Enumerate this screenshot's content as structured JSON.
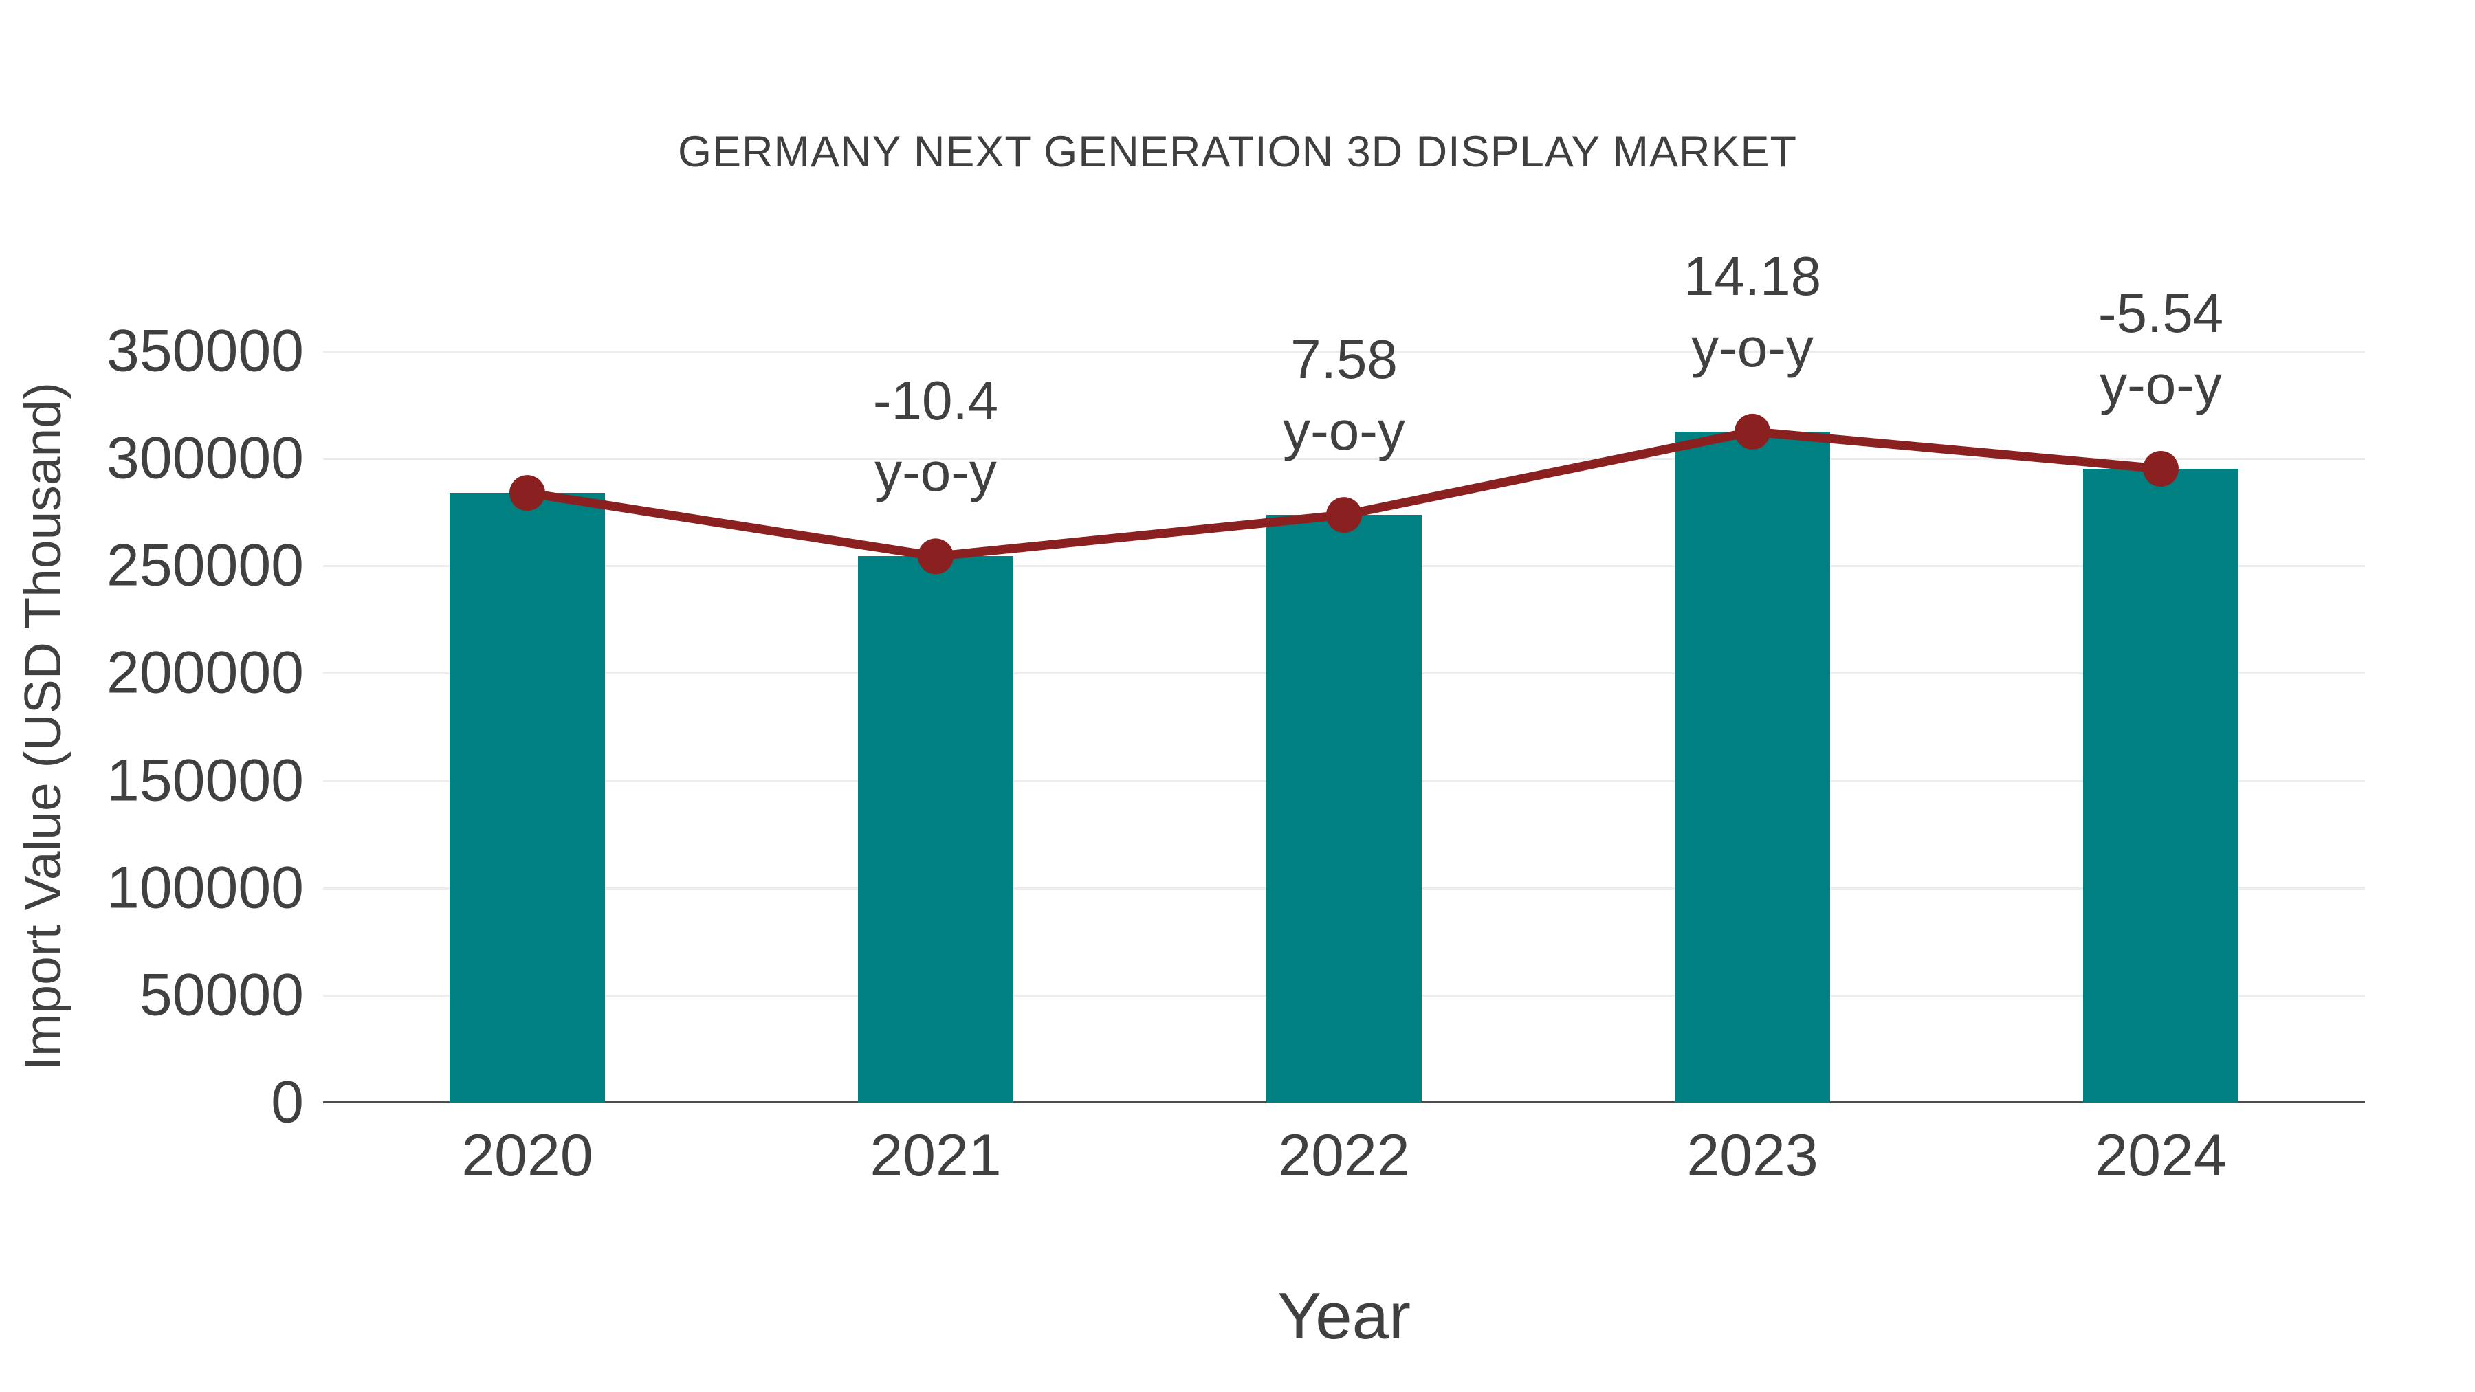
{
  "chart_data": {
    "type": "bar",
    "title": "GERMANY NEXT GENERATION 3D DISPLAY MARKET",
    "xlabel": "Year",
    "ylabel": "Import Value (USD Thousand)",
    "categories": [
      "2020",
      "2021",
      "2022",
      "2023",
      "2024"
    ],
    "series": [
      {
        "name": "Import Value (bars)",
        "type": "bar",
        "values": [
          284000,
          254460,
          273750,
          312570,
          295260
        ]
      },
      {
        "name": "Import Value (trend line)",
        "type": "line",
        "values": [
          284000,
          254460,
          273750,
          312570,
          295260
        ]
      }
    ],
    "annotations": [
      {
        "category": "2021",
        "value": "-10.4",
        "suffix": "y-o-y"
      },
      {
        "category": "2022",
        "value": "7.58",
        "suffix": "y-o-y"
      },
      {
        "category": "2023",
        "value": "14.18",
        "suffix": "y-o-y"
      },
      {
        "category": "2024",
        "value": "-5.54",
        "suffix": "y-o-y"
      }
    ],
    "ylim": [
      0,
      350000
    ],
    "ytick_step": 50000,
    "ytick_labels": [
      "0",
      "50000",
      "100000",
      "150000",
      "200000",
      "250000",
      "300000",
      "350000"
    ],
    "grid": "horizontal",
    "legend": "none",
    "colors": {
      "bar": "#008080",
      "line": "#8B2020",
      "text": "#404040",
      "grid": "#ececec",
      "axis": "#4d4d4d"
    }
  }
}
